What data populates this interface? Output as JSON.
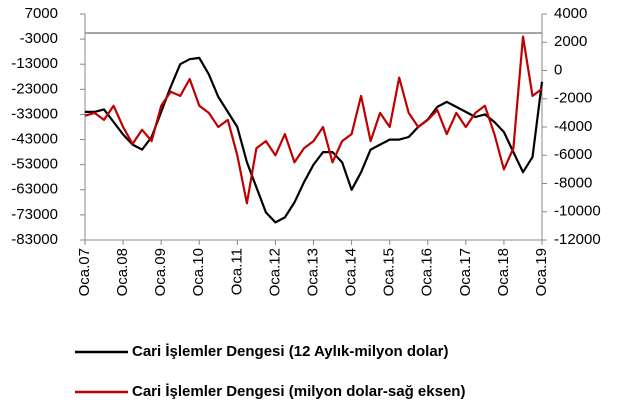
{
  "chart_data": {
    "type": "line",
    "categories": [
      "Oca.07",
      null,
      null,
      null,
      "Oca.08",
      null,
      null,
      null,
      "Oca.09",
      null,
      null,
      null,
      "Oca.10",
      null,
      null,
      null,
      "Oca.11",
      null,
      null,
      null,
      "Oca.12",
      null,
      null,
      null,
      "Oca.13",
      null,
      null,
      null,
      "Oca.14",
      null,
      null,
      null,
      "Oca.15",
      null,
      null,
      null,
      "Oca.16",
      null,
      null,
      null,
      "Oca.17",
      null,
      null,
      null,
      "Oca.18",
      null,
      null,
      null,
      "Oca.19"
    ],
    "series": [
      {
        "name": "Cari İşlemler Dengesi (12 Aylık-milyon dolar)",
        "color": "#000000",
        "values": [
          -32000,
          -32000,
          -31000,
          -36000,
          -41000,
          -45000,
          -47000,
          -42000,
          -32000,
          -22000,
          -13000,
          -11000,
          -10500,
          -17000,
          -26000,
          -32000,
          -38000,
          -52000,
          -62000,
          -72000,
          -76000,
          -74000,
          -68000,
          -60000,
          -53000,
          -48000,
          -48000,
          -52000,
          -63000,
          -56000,
          -47000,
          -45000,
          -43000,
          -43000,
          -42000,
          -38000,
          -35000,
          -30000,
          -28000,
          -30000,
          -32000,
          -34000,
          -33000,
          -36000,
          -40000,
          -48000,
          -56000,
          -50000,
          -20000
        ]
      },
      {
        "name": "Cari İşlemler Dengesi (milyon dolar-sağ eksen)",
        "color": "#c00000",
        "axis": "y2",
        "values": [
          -3200,
          -3000,
          -3500,
          -2500,
          -4000,
          -5200,
          -4200,
          -5000,
          -2500,
          -1500,
          -1800,
          -600,
          -2500,
          -3000,
          -4000,
          -3500,
          -6000,
          -9400,
          -5500,
          -5000,
          -6000,
          -4500,
          -6500,
          -5500,
          -5000,
          -4000,
          -6500,
          -5000,
          -4500,
          -1800,
          -5000,
          -3000,
          -4000,
          -500,
          -3000,
          -4000,
          -3500,
          -2800,
          -4500,
          -3000,
          -4000,
          -3000,
          -2500,
          -4500,
          -7000,
          -5500,
          2400,
          -1800,
          -1300
        ]
      }
    ],
    "ylim": [
      -83000,
      7000
    ],
    "yticks": [
      -83000,
      -73000,
      -63000,
      -53000,
      -43000,
      -33000,
      -23000,
      -13000,
      -3000,
      7000
    ],
    "y2lim": [
      -12000,
      4000
    ],
    "y2ticks": [
      -12000,
      -10000,
      -8000,
      -6000,
      -4000,
      -2000,
      0,
      2000,
      4000
    ],
    "legend": "bottom"
  }
}
